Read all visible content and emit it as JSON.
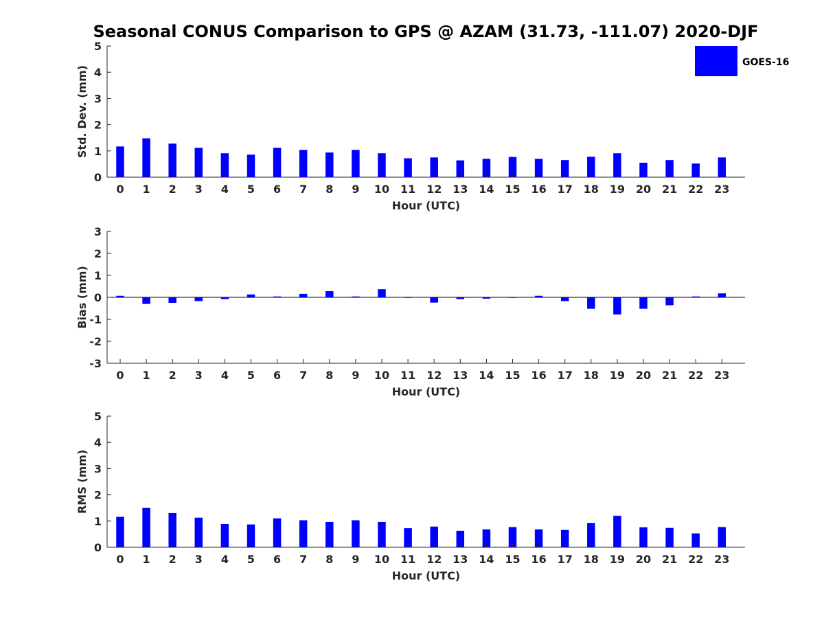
{
  "figure": {
    "title": "Seasonal CONUS Comparison to GPS @ AZAM (31.73, -111.07) 2020-DJF",
    "legend": {
      "label": "GOES-16",
      "color": "#0000ff",
      "position": "top-right"
    },
    "bar_color": "#0000ff"
  },
  "chart_data": [
    {
      "type": "bar",
      "title": "Seasonal CONUS Comparison to GPS @ AZAM (31.73, -111.07) 2020-DJF",
      "xlabel": "Hour (UTC)",
      "ylabel": "Std. Dev. (mm)",
      "categories": [
        "0",
        "1",
        "2",
        "3",
        "4",
        "5",
        "6",
        "7",
        "8",
        "9",
        "10",
        "11",
        "12",
        "13",
        "14",
        "15",
        "16",
        "17",
        "18",
        "19",
        "20",
        "21",
        "22",
        "23"
      ],
      "series": [
        {
          "name": "GOES-16",
          "values": [
            1.17,
            1.48,
            1.28,
            1.12,
            0.91,
            0.86,
            1.12,
            1.04,
            0.94,
            1.04,
            0.91,
            0.72,
            0.75,
            0.64,
            0.7,
            0.77,
            0.7,
            0.65,
            0.78,
            0.91,
            0.55,
            0.65,
            0.52,
            0.75
          ]
        }
      ],
      "ylim": [
        0,
        5
      ],
      "yticks": [
        0,
        1,
        2,
        3,
        4,
        5
      ]
    },
    {
      "type": "bar",
      "title": "",
      "xlabel": "Hour (UTC)",
      "ylabel": "Bias (mm)",
      "categories": [
        "0",
        "1",
        "2",
        "3",
        "4",
        "5",
        "6",
        "7",
        "8",
        "9",
        "10",
        "11",
        "12",
        "13",
        "14",
        "15",
        "16",
        "17",
        "18",
        "19",
        "20",
        "21",
        "22",
        "23"
      ],
      "series": [
        {
          "name": "GOES-16",
          "values": [
            0.07,
            -0.3,
            -0.25,
            -0.17,
            -0.08,
            0.13,
            0.04,
            0.16,
            0.28,
            0.04,
            0.37,
            -0.02,
            -0.24,
            -0.08,
            -0.06,
            -0.02,
            0.07,
            -0.17,
            -0.52,
            -0.78,
            -0.52,
            -0.36,
            0.04,
            0.18
          ]
        }
      ],
      "ylim": [
        -3,
        3
      ],
      "yticks": [
        -3,
        -2,
        -1,
        0,
        1,
        2,
        3
      ]
    },
    {
      "type": "bar",
      "title": "",
      "xlabel": "Hour (UTC)",
      "ylabel": "RMS (mm)",
      "categories": [
        "0",
        "1",
        "2",
        "3",
        "4",
        "5",
        "6",
        "7",
        "8",
        "9",
        "10",
        "11",
        "12",
        "13",
        "14",
        "15",
        "16",
        "17",
        "18",
        "19",
        "20",
        "21",
        "22",
        "23"
      ],
      "series": [
        {
          "name": "GOES-16",
          "values": [
            1.16,
            1.5,
            1.31,
            1.13,
            0.89,
            0.87,
            1.1,
            1.03,
            0.97,
            1.03,
            0.97,
            0.73,
            0.79,
            0.63,
            0.68,
            0.77,
            0.68,
            0.66,
            0.92,
            1.2,
            0.76,
            0.74,
            0.53,
            0.77
          ]
        }
      ],
      "ylim": [
        0,
        5
      ],
      "yticks": [
        0,
        1,
        2,
        3,
        4,
        5
      ]
    }
  ]
}
